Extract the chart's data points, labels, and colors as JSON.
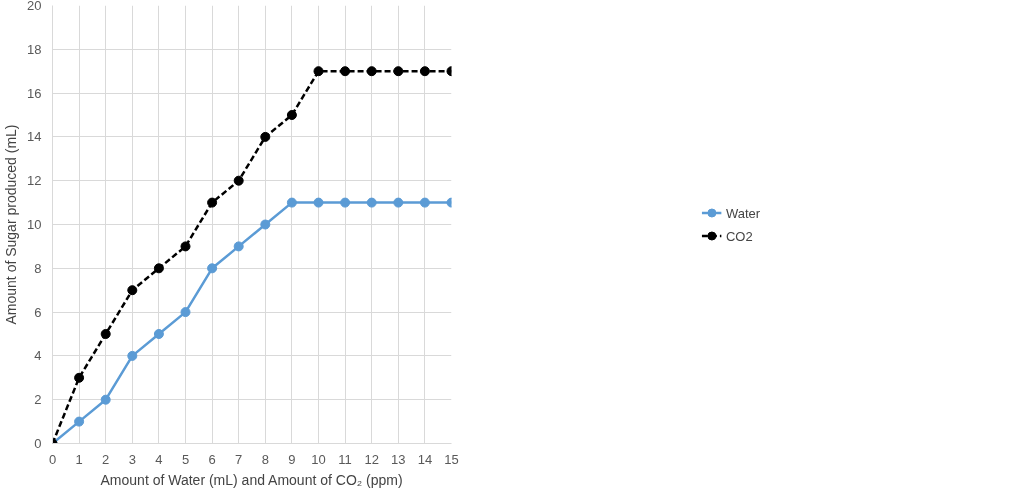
{
  "chart_data": {
    "type": "line",
    "xlabel": "Amount of Water (mL) and Amount of CO₂ (ppm)",
    "ylabel": "Amount of Sugar produced (mL)",
    "x": [
      0,
      1,
      2,
      3,
      4,
      5,
      6,
      7,
      8,
      9,
      10,
      11,
      12,
      13,
      14,
      15
    ],
    "series": [
      {
        "name": "Water",
        "color": "#5b9bd5",
        "line_style": "solid",
        "values": [
          0,
          1,
          2,
          4,
          5,
          6,
          8,
          9,
          10,
          11,
          11,
          11,
          11,
          11,
          11,
          11
        ]
      },
      {
        "name": "CO2",
        "color": "#000000",
        "line_style": "dashed",
        "values": [
          0,
          3,
          5,
          7,
          8,
          9,
          11,
          12,
          14,
          15,
          17,
          17,
          17,
          17,
          17,
          17
        ]
      }
    ],
    "xlim": [
      0,
      15
    ],
    "xticks": [
      0,
      1,
      2,
      3,
      4,
      5,
      6,
      7,
      8,
      9,
      10,
      11,
      12,
      13,
      14,
      15
    ],
    "ylim": [
      0,
      20
    ],
    "yticks": [
      0,
      2,
      4,
      6,
      8,
      10,
      12,
      14,
      16,
      18,
      20
    ],
    "grid": true,
    "legend": "right",
    "marker": "circle"
  }
}
